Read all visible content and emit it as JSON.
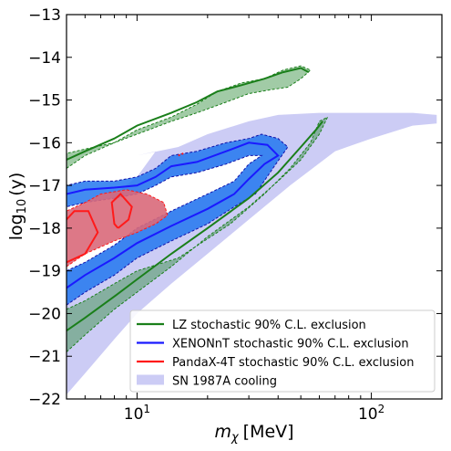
{
  "chart_data": {
    "type": "area",
    "xlabel_base": "m",
    "xlabel_sub": "χ",
    "xlabel_unit": "[MeV]",
    "ylabel_func": "log",
    "ylabel_sub": "10",
    "ylabel_arg": "(y)",
    "xscale": "log",
    "xlim": [
      5,
      200
    ],
    "ylim": [
      -22,
      -13
    ],
    "xticks": [
      {
        "value": 10,
        "base": "10",
        "exp": "1"
      },
      {
        "value": 100,
        "base": "10",
        "exp": "2"
      }
    ],
    "yticks": [
      "-13",
      "-14",
      "-15",
      "-16",
      "-17",
      "-18",
      "-19",
      "-20",
      "-21",
      "-22"
    ],
    "grid": false,
    "legend_position": "lower-right",
    "series": [
      {
        "name": "SN 1987A cooling",
        "kind": "fill",
        "color": "#ccccf5",
        "polygon": [
          [
            5,
            -22
          ],
          [
            5,
            -21.9
          ],
          [
            6,
            -21.4
          ],
          [
            8,
            -20.6
          ],
          [
            10,
            -20.0
          ],
          [
            14,
            -19.3
          ],
          [
            20,
            -18.6
          ],
          [
            30,
            -17.8
          ],
          [
            45,
            -17.0
          ],
          [
            70,
            -16.2
          ],
          [
            100,
            -15.9
          ],
          [
            150,
            -15.6
          ],
          [
            190,
            -15.55
          ],
          [
            190,
            -15.35
          ],
          [
            150,
            -15.3
          ],
          [
            100,
            -15.3
          ],
          [
            60,
            -15.3
          ],
          [
            40,
            -15.35
          ],
          [
            30,
            -15.5
          ],
          [
            20,
            -15.8
          ],
          [
            15,
            -16.1
          ],
          [
            10,
            -16.3
          ],
          [
            12,
            -16.2
          ],
          [
            10,
            -16.8
          ],
          [
            8,
            -17.2
          ],
          [
            7,
            -17.5
          ],
          [
            6,
            -17.9
          ],
          [
            5,
            -18.3
          ],
          [
            4.5,
            -22
          ]
        ]
      },
      {
        "name": "XENONnT stochastic 90% C.L. exclusion",
        "kind": "band",
        "color": "#1a1aff",
        "fill": "#2277ee",
        "outer": [
          [
            5,
            -19.8
          ],
          [
            6,
            -19.5
          ],
          [
            8,
            -19.1
          ],
          [
            10,
            -18.7
          ],
          [
            14,
            -18.3
          ],
          [
            20,
            -17.9
          ],
          [
            26,
            -17.5
          ],
          [
            32,
            -17.2
          ],
          [
            38,
            -16.6
          ],
          [
            44,
            -16.1
          ],
          [
            40,
            -15.9
          ],
          [
            34,
            -15.8
          ],
          [
            30,
            -15.9
          ],
          [
            24,
            -16.0
          ],
          [
            18,
            -16.2
          ],
          [
            14,
            -16.3
          ],
          [
            12,
            -16.6
          ],
          [
            10,
            -16.8
          ],
          [
            8,
            -16.9
          ],
          [
            6,
            -16.9
          ],
          [
            5,
            -17.0
          ]
        ],
        "inner": [
          [
            5,
            -19.0
          ],
          [
            6,
            -18.8
          ],
          [
            8,
            -18.4
          ],
          [
            10,
            -18.0
          ],
          [
            14,
            -17.6
          ],
          [
            20,
            -17.2
          ],
          [
            26,
            -16.9
          ],
          [
            30,
            -16.5
          ],
          [
            34,
            -16.3
          ],
          [
            30,
            -16.3
          ],
          [
            24,
            -16.5
          ],
          [
            18,
            -16.7
          ],
          [
            14,
            -16.8
          ],
          [
            12,
            -17.0
          ],
          [
            10,
            -17.2
          ],
          [
            8,
            -17.3
          ],
          [
            6,
            -17.4
          ],
          [
            5,
            -17.5
          ]
        ],
        "line": [
          [
            5,
            -19.4
          ],
          [
            6,
            -19.1
          ],
          [
            8,
            -18.7
          ],
          [
            10,
            -18.35
          ],
          [
            14,
            -17.95
          ],
          [
            20,
            -17.55
          ],
          [
            26,
            -17.2
          ],
          [
            30,
            -16.85
          ],
          [
            35,
            -16.5
          ],
          [
            40,
            -16.3
          ],
          [
            36,
            -16.05
          ],
          [
            30,
            -16.0
          ],
          [
            24,
            -16.2
          ],
          [
            18,
            -16.45
          ],
          [
            14,
            -16.55
          ],
          [
            12,
            -16.8
          ],
          [
            10,
            -17.0
          ],
          [
            8,
            -17.05
          ],
          [
            6,
            -17.1
          ],
          [
            5,
            -17.2
          ]
        ]
      },
      {
        "name": "LZ stochastic 90% C.L. exclusion",
        "kind": "band",
        "color": "#1a7f1a",
        "fill": "#2e8b3a",
        "lower_band": [
          [
            5,
            -20.9
          ],
          [
            6,
            -20.5
          ],
          [
            8,
            -19.9
          ],
          [
            10,
            -19.5
          ],
          [
            14,
            -18.9
          ],
          [
            20,
            -18.2
          ],
          [
            30,
            -17.5
          ],
          [
            40,
            -16.9
          ],
          [
            50,
            -16.4
          ],
          [
            60,
            -15.8
          ],
          [
            65,
            -15.4
          ],
          [
            60,
            -15.5
          ],
          [
            55,
            -16.0
          ],
          [
            45,
            -16.6
          ],
          [
            35,
            -17.2
          ],
          [
            25,
            -17.9
          ],
          [
            15,
            -18.7
          ],
          [
            10,
            -19.0
          ],
          [
            8,
            -19.3
          ],
          [
            6,
            -19.7
          ],
          [
            5,
            -19.9
          ]
        ],
        "upper_band": [
          [
            5,
            -16.6
          ],
          [
            6,
            -16.3
          ],
          [
            8,
            -16.0
          ],
          [
            10,
            -15.7
          ],
          [
            14,
            -15.4
          ],
          [
            18,
            -15.1
          ],
          [
            22,
            -14.8
          ],
          [
            28,
            -14.6
          ],
          [
            35,
            -14.5
          ],
          [
            42,
            -14.3
          ],
          [
            50,
            -14.2
          ],
          [
            55,
            -14.3
          ],
          [
            50,
            -14.5
          ],
          [
            44,
            -14.7
          ],
          [
            38,
            -14.75
          ],
          [
            30,
            -14.85
          ],
          [
            24,
            -15.05
          ],
          [
            18,
            -15.3
          ],
          [
            14,
            -15.5
          ],
          [
            10,
            -15.8
          ],
          [
            8,
            -16.0
          ],
          [
            6,
            -16.15
          ],
          [
            5,
            -16.25
          ]
        ],
        "line_lower": [
          [
            5,
            -20.4
          ],
          [
            6,
            -20.1
          ],
          [
            8,
            -19.6
          ],
          [
            10,
            -19.2
          ],
          [
            14,
            -18.6
          ],
          [
            20,
            -18.0
          ],
          [
            30,
            -17.3
          ],
          [
            40,
            -16.7
          ],
          [
            50,
            -16.1
          ],
          [
            58,
            -15.7
          ],
          [
            62,
            -15.5
          ]
        ],
        "line_upper": [
          [
            5,
            -16.4
          ],
          [
            6,
            -16.2
          ],
          [
            8,
            -15.9
          ],
          [
            10,
            -15.6
          ],
          [
            14,
            -15.3
          ],
          [
            18,
            -15.05
          ],
          [
            22,
            -14.8
          ],
          [
            28,
            -14.65
          ],
          [
            35,
            -14.5
          ],
          [
            42,
            -14.35
          ],
          [
            50,
            -14.25
          ],
          [
            54,
            -14.35
          ]
        ]
      },
      {
        "name": "PandaX-4T stochastic 90% C.L. exclusion",
        "kind": "band",
        "color": "#ff1a1a",
        "fill": "#d9697a",
        "outer": [
          [
            5,
            -18.9
          ],
          [
            6,
            -18.6
          ],
          [
            8,
            -18.3
          ],
          [
            10,
            -18.1
          ],
          [
            12,
            -17.9
          ],
          [
            13.5,
            -17.7
          ],
          [
            13,
            -17.4
          ],
          [
            11,
            -17.2
          ],
          [
            9,
            -17.1
          ],
          [
            7,
            -17.2
          ],
          [
            6,
            -17.4
          ],
          [
            5,
            -17.6
          ]
        ],
        "line_left": [
          [
            5,
            -18.8
          ],
          [
            6,
            -18.6
          ],
          [
            6.8,
            -18.1
          ],
          [
            6.2,
            -17.6
          ],
          [
            5.4,
            -17.6
          ],
          [
            5,
            -17.8
          ]
        ],
        "line_right": [
          [
            8.3,
            -18.0
          ],
          [
            9.2,
            -17.8
          ],
          [
            9.5,
            -17.5
          ],
          [
            8.5,
            -17.2
          ],
          [
            7.8,
            -17.4
          ],
          [
            8.0,
            -17.9
          ],
          [
            8.3,
            -18.0
          ]
        ],
        "speck": [
          [
            15,
            -16.3
          ],
          [
            15.8,
            -16.25
          ]
        ]
      }
    ],
    "legend": [
      {
        "label": "LZ stochastic 90% C.L. exclusion",
        "color": "#1a7f1a",
        "type": "line"
      },
      {
        "label": "XENONnT stochastic 90% C.L. exclusion",
        "color": "#1a1aff",
        "type": "line"
      },
      {
        "label": "PandaX-4T stochastic 90% C.L. exclusion",
        "color": "#ff1a1a",
        "type": "line"
      },
      {
        "label": "SN 1987A cooling",
        "color": "#ccccf5",
        "type": "patch"
      }
    ]
  }
}
